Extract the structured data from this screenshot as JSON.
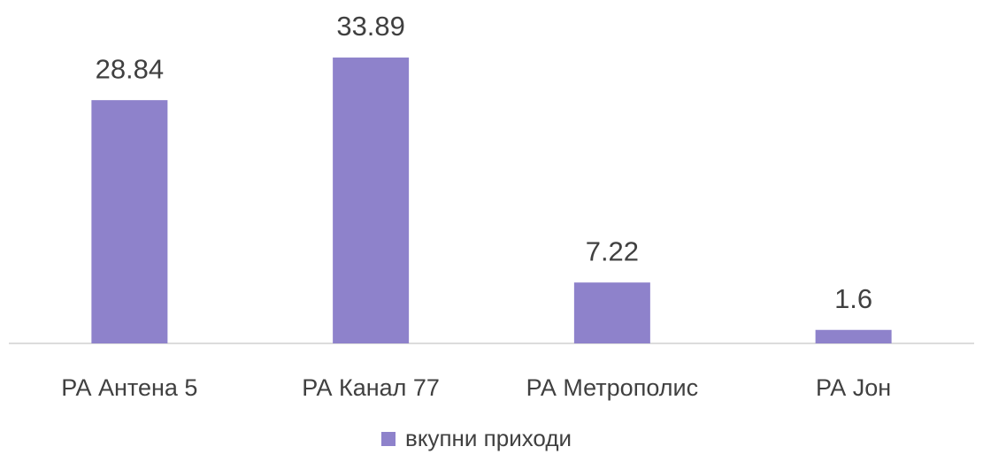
{
  "chart_data": {
    "type": "bar",
    "categories": [
      "РА Антена 5",
      "РА Канал 77",
      "РА Метрополис",
      "РА Јон"
    ],
    "series": [
      {
        "name": "вкупни приходи",
        "color": "#8e82cb",
        "values": [
          28.84,
          33.89,
          7.22,
          1.6
        ]
      }
    ]
  }
}
